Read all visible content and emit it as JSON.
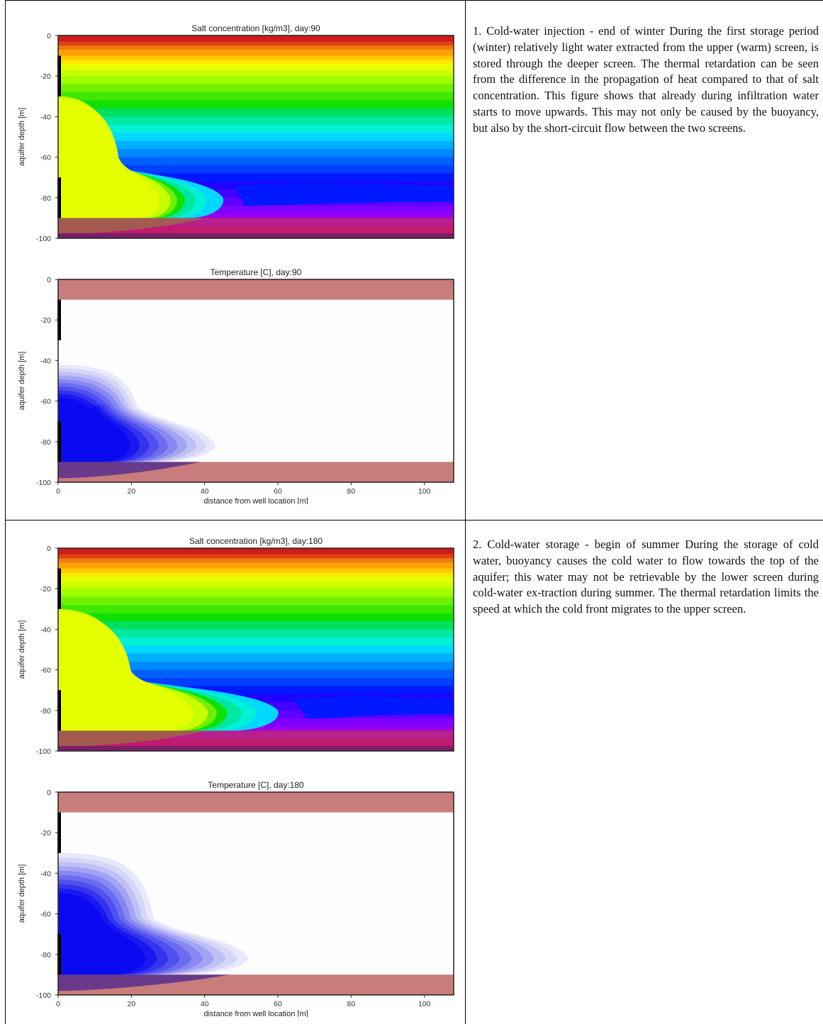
{
  "rows": [
    {
      "caption": "1. Cold-water injection - end of winter During the first storage period (winter) relatively light water extracted from the upper (warm) screen, is stored through the deeper screen. The thermal retardation can be seen from the difference in the propagation of heat compared to that of salt concentration. This figure shows that already during infiltration water starts to move upwards. This may not only be caused by the buoyancy, but also by the short-circuit flow between the two screens."
    },
    {
      "caption": "2. Cold-water storage - begin of summer During the storage of cold water, buoyancy causes the cold water to flow towards the top of the aquifer; this water may not be retrievable by the lower screen during cold-water ex-traction during summer. The thermal retardation limits the speed at which the cold front migrates to the upper screen."
    }
  ],
  "chart_data": [
    {
      "type": "contour",
      "title": "Salt concentration [kg/m3], day:90",
      "ylabel": "aquifer depth [m]",
      "xlabel": "",
      "xlim": [
        0,
        108
      ],
      "ylim": [
        -100,
        0
      ],
      "yticks": [
        0,
        -20,
        -40,
        -60,
        -80,
        -100
      ],
      "xticks": [],
      "colormap": "rainbow",
      "screens_depth_m": [
        [
          -10,
          -30
        ],
        [
          -70,
          -90
        ]
      ],
      "plume_front_m": 30
    },
    {
      "type": "contour",
      "title": "Temperature [C], day:90",
      "ylabel": "aquifer depth [m]",
      "xlabel": "distance from well location [m]",
      "xlim": [
        0,
        108
      ],
      "ylim": [
        -100,
        0
      ],
      "yticks": [
        0,
        -20,
        -40,
        -60,
        -80,
        -100
      ],
      "xticks": [
        0,
        20,
        40,
        60,
        80,
        100
      ],
      "colormap": "bwr",
      "screens_depth_m": [
        [
          -10,
          -30
        ],
        [
          -70,
          -90
        ]
      ],
      "cold_front_m": 43
    },
    {
      "type": "contour",
      "title": "Salt concentration [kg/m3], day:180",
      "ylabel": "aquifer depth [m]",
      "xlabel": "",
      "xlim": [
        0,
        108
      ],
      "ylim": [
        -100,
        0
      ],
      "yticks": [
        0,
        -20,
        -40,
        -60,
        -80,
        -100
      ],
      "xticks": [],
      "colormap": "rainbow",
      "screens_depth_m": [
        [
          -10,
          -30
        ],
        [
          -70,
          -90
        ]
      ],
      "plume_front_m": 40
    },
    {
      "type": "contour",
      "title": "Temperature [C], day:180",
      "ylabel": "aquifer depth [m]",
      "xlabel": "distance from well location [m]",
      "xlim": [
        0,
        108
      ],
      "ylim": [
        -100,
        0
      ],
      "yticks": [
        0,
        -20,
        -40,
        -60,
        -80,
        -100
      ],
      "xticks": [
        0,
        20,
        40,
        60,
        80,
        100
      ],
      "colormap": "bwr",
      "screens_depth_m": [
        [
          -10,
          -30
        ],
        [
          -70,
          -90
        ]
      ],
      "cold_front_m": 52
    }
  ]
}
